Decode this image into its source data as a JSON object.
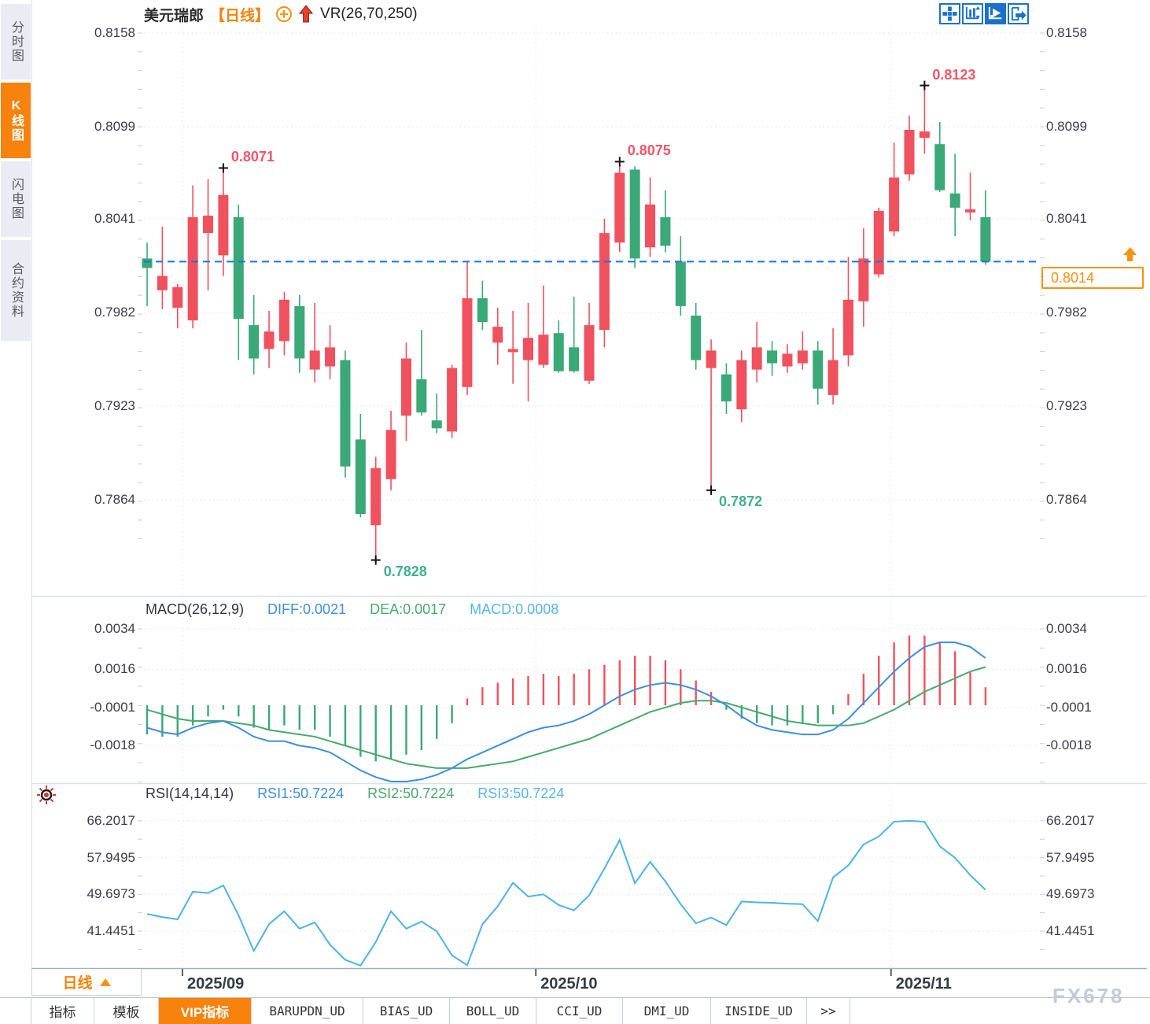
{
  "header": {
    "title": "美元瑞郎",
    "period_tag": "【日线】",
    "indicator": "VR(26,70,250)",
    "toolbar_icons": [
      {
        "name": "pan-crosshair-icon",
        "active": false
      },
      {
        "name": "axis-scale-icon",
        "active": false
      },
      {
        "name": "axis-play-icon",
        "active": true
      },
      {
        "name": "pop-out-icon",
        "active": false
      }
    ]
  },
  "sidebar": {
    "items": [
      {
        "label": "分时图",
        "active": false
      },
      {
        "label": "K线图",
        "active": true
      },
      {
        "label": "闪电图",
        "active": false
      },
      {
        "label": "合约资料",
        "active": false
      }
    ]
  },
  "price_tag": {
    "value": "0.8014"
  },
  "period_selector": {
    "label": "日线"
  },
  "bottom_tabs": [
    {
      "label": "指标",
      "active": false,
      "mono": false
    },
    {
      "label": "模板",
      "active": false,
      "mono": false
    },
    {
      "label": "VIP指标",
      "active": true,
      "mono": false
    },
    {
      "label": "BARUPDN_UD",
      "active": false,
      "mono": true
    },
    {
      "label": "BIAS_UD",
      "active": false,
      "mono": true
    },
    {
      "label": "BOLL_UD",
      "active": false,
      "mono": true
    },
    {
      "label": "CCI_UD",
      "active": false,
      "mono": true
    },
    {
      "label": "DMI_UD",
      "active": false,
      "mono": true
    },
    {
      "label": "INSIDE_UD",
      "active": false,
      "mono": true
    },
    {
      "label": ">>",
      "active": false,
      "mono": true
    }
  ],
  "watermark": "FX678",
  "colors": {
    "up": "#f0515e",
    "down": "#3aa877",
    "accent_orange": "#f7820c",
    "dashed_line_blue": "#1576e8",
    "diff_blue": "#3f8edc",
    "dea_green": "#48a96c",
    "macd_cyan": "#55b5e8",
    "rsi_line": "#4db3e6",
    "high_label": "#f4566b",
    "low_label": "#3db28d"
  },
  "chart_data": [
    {
      "type": "candlestick",
      "title": "美元瑞郎 日线 (USD/CHF daily)",
      "y_ticks": [
        0.8158,
        0.8099,
        0.8041,
        0.7982,
        0.7923,
        0.7864
      ],
      "ylim": [
        0.7808,
        0.8164
      ],
      "x_ticks": [
        {
          "label": "2025/09",
          "index": 2.32
        },
        {
          "label": "2025/10",
          "index": 25.5
        },
        {
          "label": "2025/11",
          "index": 48.8
        }
      ],
      "current_price": 0.8014,
      "annotations": [
        {
          "index": 5,
          "side": "high",
          "price": 0.8071,
          "label": "0.8071"
        },
        {
          "index": 31,
          "side": "high",
          "price": 0.8075,
          "label": "0.8075"
        },
        {
          "index": 51,
          "side": "high",
          "price": 0.8123,
          "label": "0.8123"
        },
        {
          "index": 15,
          "side": "low",
          "price": 0.7828,
          "label": "0.7828"
        },
        {
          "index": 37,
          "side": "low",
          "price": 0.7872,
          "label": "0.7872"
        }
      ],
      "candles": [
        [
          0.8016,
          0.8026,
          0.7986,
          0.801
        ],
        [
          0.7996,
          0.8036,
          0.7984,
          0.8005
        ],
        [
          0.7985,
          0.8,
          0.7972,
          0.7998
        ],
        [
          0.7977,
          0.8062,
          0.7972,
          0.8042
        ],
        [
          0.8032,
          0.8066,
          0.7996,
          0.8043
        ],
        [
          0.8018,
          0.8071,
          0.8005,
          0.8056
        ],
        [
          0.8042,
          0.805,
          0.7952,
          0.7978
        ],
        [
          0.7974,
          0.7993,
          0.7943,
          0.7953
        ],
        [
          0.7959,
          0.7983,
          0.7947,
          0.797
        ],
        [
          0.7964,
          0.7995,
          0.7955,
          0.799
        ],
        [
          0.7986,
          0.7993,
          0.7944,
          0.7953
        ],
        [
          0.7946,
          0.7988,
          0.7938,
          0.7958
        ],
        [
          0.7948,
          0.7974,
          0.794,
          0.796
        ],
        [
          0.7952,
          0.7958,
          0.7878,
          0.7885
        ],
        [
          0.7902,
          0.7918,
          0.7853,
          0.7855
        ],
        [
          0.7848,
          0.7891,
          0.7828,
          0.7884
        ],
        [
          0.7877,
          0.792,
          0.787,
          0.7908
        ],
        [
          0.7917,
          0.7963,
          0.7901,
          0.7953
        ],
        [
          0.794,
          0.7971,
          0.7917,
          0.7919
        ],
        [
          0.7914,
          0.7931,
          0.7906,
          0.7909
        ],
        [
          0.7907,
          0.7949,
          0.7903,
          0.7947
        ],
        [
          0.7935,
          0.8014,
          0.793,
          0.7991
        ],
        [
          0.7991,
          0.8002,
          0.7971,
          0.7976
        ],
        [
          0.7963,
          0.7985,
          0.7949,
          0.7973
        ],
        [
          0.7957,
          0.7983,
          0.7937,
          0.7959
        ],
        [
          0.7952,
          0.7988,
          0.7926,
          0.7966
        ],
        [
          0.7949,
          0.7999,
          0.7947,
          0.7968
        ],
        [
          0.7969,
          0.7977,
          0.7944,
          0.7945
        ],
        [
          0.796,
          0.7992,
          0.7944,
          0.7945
        ],
        [
          0.7939,
          0.7988,
          0.7937,
          0.7974
        ],
        [
          0.7971,
          0.8041,
          0.796,
          0.8032
        ],
        [
          0.8026,
          0.8075,
          0.802,
          0.807
        ],
        [
          0.8072,
          0.8074,
          0.801,
          0.8016
        ],
        [
          0.8023,
          0.8067,
          0.8017,
          0.805
        ],
        [
          0.8042,
          0.8059,
          0.802,
          0.8024
        ],
        [
          0.8014,
          0.803,
          0.798,
          0.7986
        ],
        [
          0.798,
          0.7988,
          0.7946,
          0.7952
        ],
        [
          0.7947,
          0.7965,
          0.7872,
          0.7958
        ],
        [
          0.7943,
          0.795,
          0.7918,
          0.7926
        ],
        [
          0.7921,
          0.7958,
          0.7913,
          0.7952
        ],
        [
          0.7946,
          0.7976,
          0.7938,
          0.796
        ],
        [
          0.7958,
          0.7964,
          0.7942,
          0.795
        ],
        [
          0.7948,
          0.7962,
          0.7944,
          0.7956
        ],
        [
          0.795,
          0.797,
          0.7946,
          0.7958
        ],
        [
          0.7958,
          0.7964,
          0.7924,
          0.7934
        ],
        [
          0.793,
          0.7972,
          0.7924,
          0.7952
        ],
        [
          0.7955,
          0.8017,
          0.7948,
          0.799
        ],
        [
          0.7989,
          0.8035,
          0.7973,
          0.8016
        ],
        [
          0.8006,
          0.8048,
          0.8004,
          0.8046
        ],
        [
          0.8033,
          0.8089,
          0.803,
          0.8067
        ],
        [
          0.8069,
          0.8106,
          0.8065,
          0.8097
        ],
        [
          0.8092,
          0.8123,
          0.8082,
          0.8096
        ],
        [
          0.8088,
          0.8102,
          0.8058,
          0.8059
        ],
        [
          0.8057,
          0.8082,
          0.803,
          0.8048
        ],
        [
          0.8045,
          0.807,
          0.804,
          0.8047
        ],
        [
          0.8042,
          0.8059,
          0.8012,
          0.8014
        ]
      ]
    },
    {
      "type": "macd",
      "label": "MACD(26,12,9)",
      "legend": [
        {
          "name": "DIFF",
          "value": "0.0021"
        },
        {
          "name": "DEA",
          "value": "0.0017"
        },
        {
          "name": "MACD",
          "value": "0.0008"
        }
      ],
      "y_ticks": [
        0.0034,
        0.0016,
        -0.0001,
        -0.0018
      ],
      "diff": [
        -0.001,
        -0.0012,
        -0.0013,
        -0.001,
        -0.0008,
        -0.0007,
        -0.001,
        -0.0014,
        -0.0016,
        -0.0016,
        -0.0018,
        -0.0019,
        -0.0021,
        -0.0025,
        -0.0029,
        -0.0032,
        -0.0034,
        -0.0034,
        -0.0033,
        -0.0031,
        -0.0028,
        -0.0024,
        -0.0021,
        -0.0018,
        -0.0015,
        -0.0012,
        -0.001,
        -0.0009,
        -0.0007,
        -0.0004,
        0.0,
        0.0004,
        0.0007,
        0.0009,
        0.001,
        0.0009,
        0.0007,
        0.0004,
        0.0,
        -0.0005,
        -0.0009,
        -0.0011,
        -0.0012,
        -0.0013,
        -0.0013,
        -0.0011,
        -0.0006,
        0.0001,
        0.0008,
        0.0015,
        0.0021,
        0.0026,
        0.0028,
        0.0028,
        0.0026,
        0.0021
      ],
      "dea": [
        -0.0002,
        -0.0004,
        -0.0006,
        -0.0007,
        -0.0007,
        -0.0007,
        -0.0008,
        -0.0009,
        -0.0011,
        -0.0012,
        -0.0013,
        -0.0014,
        -0.0016,
        -0.0018,
        -0.002,
        -0.0022,
        -0.0024,
        -0.0026,
        -0.0027,
        -0.0028,
        -0.0028,
        -0.0028,
        -0.0027,
        -0.0026,
        -0.0025,
        -0.0023,
        -0.0021,
        -0.0019,
        -0.0017,
        -0.0015,
        -0.0012,
        -0.0009,
        -0.0006,
        -0.0003,
        -0.0001,
        0.0001,
        0.0002,
        0.0002,
        0.0001,
        -0.0001,
        -0.0003,
        -0.0005,
        -0.0007,
        -0.0008,
        -0.0009,
        -0.0009,
        -0.0009,
        -0.0008,
        -0.0005,
        -0.0002,
        0.0002,
        0.0006,
        0.0009,
        0.0012,
        0.0015,
        0.0017
      ],
      "hist": [
        -0.0013,
        -0.0014,
        -0.0014,
        -0.0009,
        -0.0005,
        -0.0002,
        -0.0005,
        -0.001,
        -0.0011,
        -0.0009,
        -0.0011,
        -0.0011,
        -0.0014,
        -0.0018,
        -0.0023,
        -0.0025,
        -0.0024,
        -0.0022,
        -0.002,
        -0.0015,
        -0.0008,
        0.0003,
        0.0008,
        0.001,
        0.0012,
        0.0013,
        0.0014,
        0.0013,
        0.0014,
        0.0016,
        0.0018,
        0.002,
        0.0022,
        0.0022,
        0.002,
        0.0016,
        0.0011,
        0.0006,
        -0.0002,
        -0.0006,
        -0.0008,
        -0.0009,
        -0.0009,
        -0.0008,
        -0.0008,
        -0.0004,
        0.0005,
        0.0014,
        0.0022,
        0.0028,
        0.0031,
        0.0031,
        0.0028,
        0.0024,
        0.0015,
        0.0008
      ]
    },
    {
      "type": "line",
      "label": "RSI(14,14,14)",
      "legend": [
        {
          "name": "RSI1",
          "value": "50.7224"
        },
        {
          "name": "RSI2",
          "value": "50.7224"
        },
        {
          "name": "RSI3",
          "value": "50.7224"
        }
      ],
      "y_ticks": [
        66.2017,
        57.9495,
        49.6973,
        41.4451
      ],
      "values": [
        45.3,
        44.6,
        44.1,
        50.3,
        50.0,
        51.7,
        45.0,
        37.0,
        43.0,
        45.9,
        42.0,
        43.4,
        38.4,
        35.0,
        33.7,
        39.0,
        45.9,
        42.0,
        43.6,
        41.4,
        36.0,
        33.8,
        43.0,
        47.0,
        52.3,
        49.2,
        49.7,
        47.3,
        46.1,
        49.5,
        55.5,
        61.9,
        52.2,
        57.0,
        52.6,
        47.5,
        43.2,
        44.5,
        42.8,
        48.1,
        47.9,
        47.8,
        47.6,
        47.5,
        43.7,
        53.5,
        56.2,
        60.9,
        62.7,
        66.0,
        66.2,
        66.0,
        60.5,
        57.9,
        54.0,
        50.72
      ]
    }
  ]
}
